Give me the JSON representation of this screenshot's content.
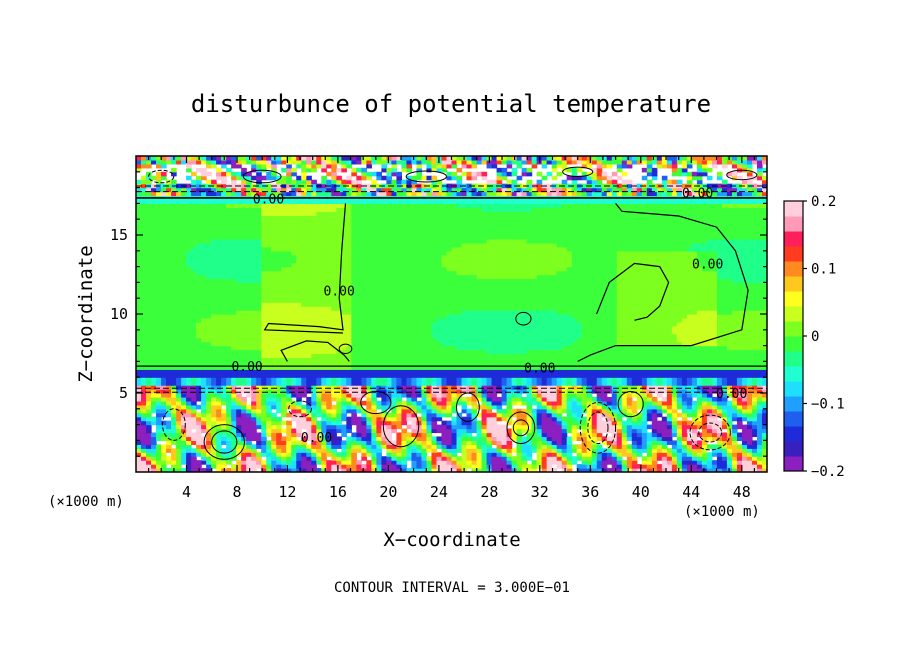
{
  "chart_data": {
    "type": "heatmap",
    "title": "disturbunce of potential temperature",
    "xlabel": "X−coordinate",
    "ylabel": "Z−coordinate",
    "x_unit_left": "(×1000 m)",
    "x_unit_right": "(×1000 m)",
    "xlim": [
      0,
      50
    ],
    "ylim": [
      0,
      20
    ],
    "x_ticks": [
      4,
      8,
      12,
      16,
      20,
      24,
      28,
      32,
      36,
      40,
      44,
      48
    ],
    "y_ticks": [
      5,
      10,
      15
    ],
    "footer": "CONTOUR INTERVAL = 3.000E−01",
    "colorbar": {
      "range": [
        -0.2,
        0.2
      ],
      "ticks": [
        {
          "value": 0.2,
          "label": "0.2"
        },
        {
          "value": 0.1,
          "label": "0.1"
        },
        {
          "value": 0,
          "label": "0"
        },
        {
          "value": -0.1,
          "label": "−0.1"
        },
        {
          "value": -0.2,
          "label": "−0.2"
        }
      ],
      "colors": [
        "#8b1fbf",
        "#3a1fbf",
        "#1f2bd9",
        "#1f5ff0",
        "#1fa0ff",
        "#1fdfff",
        "#1fffd0",
        "#1fff8a",
        "#3cff3c",
        "#7dff1f",
        "#c8ff1f",
        "#ffff1f",
        "#ffc81f",
        "#ff8a1f",
        "#ff3c1f",
        "#ff1f5a",
        "#ff9ab8",
        "#ffd0dc"
      ]
    },
    "contour_labels": [
      {
        "text": "0.00",
        "x": 10.5,
        "z": 17.3
      },
      {
        "text": "0.00",
        "x": 16.1,
        "z": 11.5
      },
      {
        "text": "0.00",
        "x": 8.8,
        "z": 6.7
      },
      {
        "text": "0.00",
        "x": 14.3,
        "z": 2.2
      },
      {
        "text": "0.00",
        "x": 32.0,
        "z": 6.6
      },
      {
        "text": "0.00",
        "x": 45.3,
        "z": 13.2
      },
      {
        "text": "0.00",
        "x": 44.5,
        "z": 17.7
      },
      {
        "text": "0.00",
        "x": 47.2,
        "z": 5.0
      }
    ]
  }
}
